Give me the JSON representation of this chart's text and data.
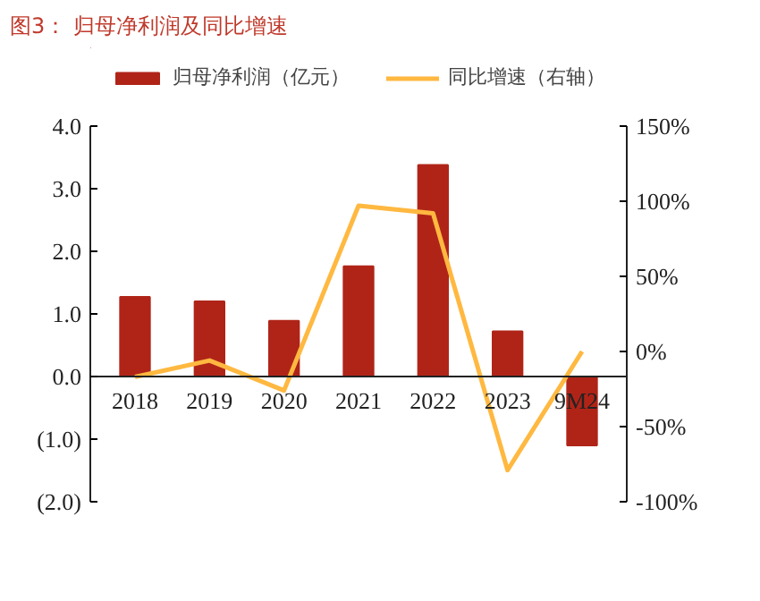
{
  "chart_data": {
    "type": "bar",
    "title": "图3：  归母净利润及同比增速",
    "categories": [
      "2018",
      "2019",
      "2020",
      "2021",
      "2022",
      "2023",
      "9M24"
    ],
    "series": [
      {
        "name": "归母净利润（亿元）",
        "color": "#b02418",
        "values": [
          1.27,
          1.2,
          0.89,
          1.76,
          3.38,
          0.72,
          -1.1
        ]
      },
      {
        "name": "同比增速（右轴）",
        "type": "line",
        "axis": "y2",
        "color": "#ffb840",
        "values": [
          -17,
          -6,
          -26,
          97,
          92,
          -79,
          0
        ]
      }
    ],
    "ylim": [
      -2,
      4
    ],
    "yticks": [
      {
        "value": -2,
        "label": "(2.0)"
      },
      {
        "value": -1,
        "label": "(1.0)"
      },
      {
        "value": 0,
        "label": "0.0"
      },
      {
        "value": 1,
        "label": "1.0"
      },
      {
        "value": 2,
        "label": "2.0"
      },
      {
        "value": 3,
        "label": "3.0"
      },
      {
        "value": 4,
        "label": "4.0"
      }
    ],
    "y2lim": [
      -100,
      150
    ],
    "y2ticks": [
      {
        "value": -100,
        "label": "-100%"
      },
      {
        "value": -50,
        "label": "-50%"
      },
      {
        "value": 0,
        "label": "0%"
      },
      {
        "value": 50,
        "label": "50%"
      },
      {
        "value": 100,
        "label": "100%"
      },
      {
        "value": 150,
        "label": "150%"
      }
    ],
    "grid": false,
    "legend": "top",
    "marker": "none",
    "line_style": "solid"
  }
}
